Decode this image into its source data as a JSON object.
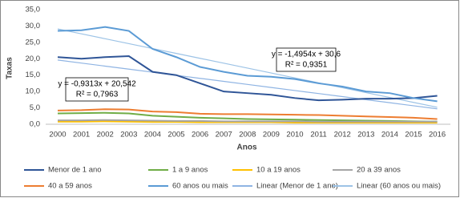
{
  "chart_data": {
    "type": "line",
    "x_label": "Anos",
    "y_label": "Taxas",
    "categories": [
      "2000",
      "2001",
      "2002",
      "2003",
      "2004",
      "2005",
      "2006",
      "2007",
      "2008",
      "2009",
      "2010",
      "2011",
      "2012",
      "2013",
      "2014",
      "2015",
      "2016"
    ],
    "ylim": [
      0,
      35
    ],
    "yticks": [
      {
        "value": 0,
        "label": "0,0"
      },
      {
        "value": 5,
        "label": "5,0"
      },
      {
        "value": 10,
        "label": "10,0"
      },
      {
        "value": 15,
        "label": "15,0"
      },
      {
        "value": 20,
        "label": "20,0"
      },
      {
        "value": 25,
        "label": "25,0"
      },
      {
        "value": 30,
        "label": "30,0"
      },
      {
        "value": 35,
        "label": "35,0"
      }
    ],
    "grid": false,
    "series": [
      {
        "name": "Menor de 1 ano",
        "color": "#2f5597",
        "values": [
          20.5,
          20.0,
          20.5,
          20.8,
          16.0,
          15.0,
          12.5,
          10.0,
          9.5,
          9.0,
          8.0,
          7.3,
          7.5,
          7.8,
          7.8,
          8.0,
          8.7
        ]
      },
      {
        "name": "1 a 9 anos",
        "color": "#70ad47",
        "values": [
          3.3,
          3.4,
          3.5,
          3.3,
          2.6,
          2.3,
          2.0,
          1.8,
          1.6,
          1.5,
          1.4,
          1.3,
          1.2,
          1.1,
          1.0,
          0.9,
          0.8
        ]
      },
      {
        "name": "10 a 19 anos",
        "color": "#ffc000",
        "values": [
          0.8,
          0.8,
          0.9,
          0.8,
          0.7,
          0.7,
          0.6,
          0.6,
          0.6,
          0.6,
          0.5,
          0.5,
          0.5,
          0.5,
          0.5,
          0.5,
          0.5
        ]
      },
      {
        "name": "20 a 39 anos",
        "color": "#a5a5a5",
        "values": [
          1.2,
          1.2,
          1.3,
          1.2,
          1.1,
          1.0,
          1.0,
          0.9,
          0.9,
          0.9,
          0.9,
          0.8,
          0.8,
          0.8,
          0.8,
          0.8,
          0.8
        ]
      },
      {
        "name": "40 a 59 anos",
        "color": "#ed7d31",
        "values": [
          4.2,
          4.3,
          4.6,
          4.5,
          3.9,
          3.7,
          3.2,
          3.1,
          3.1,
          3.0,
          2.9,
          2.8,
          2.6,
          2.4,
          2.2,
          2.0,
          1.6
        ]
      },
      {
        "name": "60 anos ou mais",
        "color": "#5b9bd5",
        "values": [
          28.5,
          28.7,
          29.7,
          28.5,
          23.0,
          20.5,
          17.5,
          16.0,
          14.8,
          14.5,
          13.8,
          12.5,
          11.5,
          10.0,
          9.5,
          8.0,
          7.0
        ]
      },
      {
        "name": "Linear (Menor de 1 ano)",
        "color": "#8fb4e3",
        "values": [
          19.61,
          18.68,
          17.75,
          16.82,
          15.89,
          14.95,
          14.02,
          13.09,
          12.16,
          11.23,
          10.3,
          9.37,
          8.44,
          7.5,
          6.57,
          5.64,
          4.71
        ]
      },
      {
        "name": "Linear (60 anos ou mais)",
        "color": "#9dc3e6",
        "values": [
          29.1,
          27.61,
          26.11,
          24.62,
          23.12,
          21.63,
          20.13,
          18.64,
          17.14,
          15.65,
          14.15,
          12.65,
          11.16,
          9.66,
          8.17,
          6.67,
          5.18
        ]
      }
    ],
    "annotations": [
      {
        "lines": [
          "y = -0,9313x + 20,542",
          "R² = 0,7963"
        ]
      },
      {
        "lines": [
          "y = -1,4954x + 30,6",
          "R² = 0,9351"
        ]
      }
    ]
  }
}
